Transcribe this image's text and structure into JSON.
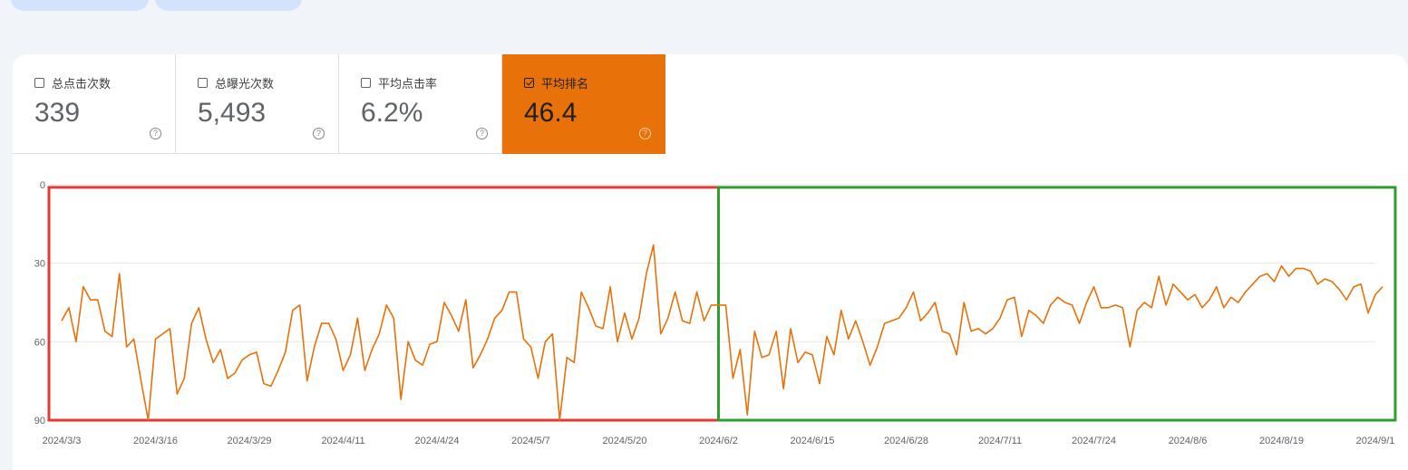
{
  "metrics": [
    {
      "label": "总点击次数",
      "value": "339",
      "checked": false
    },
    {
      "label": "总曝光次数",
      "value": "5,493",
      "checked": false
    },
    {
      "label": "平均点击率",
      "value": "6.2%",
      "checked": false
    },
    {
      "label": "平均排名",
      "value": "46.4",
      "checked": true
    }
  ],
  "icons": {
    "help": "help-circle-icon",
    "checkbox": "checkbox-icon"
  },
  "colors": {
    "accent": "#e8710a",
    "line": "#e8710a",
    "box_left": "#e53935",
    "box_right": "#2e9e2e"
  },
  "chart_data": {
    "type": "line",
    "title": "",
    "xlabel": "",
    "ylabel": "",
    "y_inverted": true,
    "ylim": [
      0,
      90
    ],
    "yticks": [
      0,
      30,
      60,
      90
    ],
    "xlim": [
      "2024-03-03",
      "2024-09-01"
    ],
    "x_tick_labels": [
      "2024/3/3",
      "2024/3/16",
      "2024/3/29",
      "2024/4/11",
      "2024/4/24",
      "2024/5/7",
      "2024/5/20",
      "2024/6/2",
      "2024/6/15",
      "2024/6/28",
      "2024/7/11",
      "2024/7/24",
      "2024/8/6",
      "2024/8/19",
      "2024/9/1"
    ],
    "x_ticks": [
      "2024-03-03",
      "2024-03-16",
      "2024-03-29",
      "2024-04-11",
      "2024-04-24",
      "2024-05-07",
      "2024-05-20",
      "2024-06-02",
      "2024-06-15",
      "2024-06-28",
      "2024-07-11",
      "2024-07-24",
      "2024-08-06",
      "2024-08-19",
      "2024-09-01"
    ],
    "grid": true,
    "series": [
      {
        "x": [
          "2024-03-03",
          "2024-03-04",
          "2024-03-05",
          "2024-03-06",
          "2024-03-07",
          "2024-03-08",
          "2024-03-09",
          "2024-03-10",
          "2024-03-11",
          "2024-03-12",
          "2024-03-13",
          "2024-03-14",
          "2024-03-15",
          "2024-03-16",
          "2024-03-17",
          "2024-03-18",
          "2024-03-19",
          "2024-03-20",
          "2024-03-21",
          "2024-03-22",
          "2024-03-23",
          "2024-03-24",
          "2024-03-25",
          "2024-03-26",
          "2024-03-27",
          "2024-03-28",
          "2024-03-29",
          "2024-03-30",
          "2024-03-31",
          "2024-04-01",
          "2024-04-02",
          "2024-04-03",
          "2024-04-04",
          "2024-04-05",
          "2024-04-06",
          "2024-04-07",
          "2024-04-08",
          "2024-04-09",
          "2024-04-10",
          "2024-04-11",
          "2024-04-12",
          "2024-04-13",
          "2024-04-14",
          "2024-04-15",
          "2024-04-16",
          "2024-04-17",
          "2024-04-18",
          "2024-04-19",
          "2024-04-20",
          "2024-04-21",
          "2024-04-22",
          "2024-04-23",
          "2024-04-24",
          "2024-04-25",
          "2024-04-26",
          "2024-04-27",
          "2024-04-28",
          "2024-04-29",
          "2024-04-30",
          "2024-05-01",
          "2024-05-02",
          "2024-05-03",
          "2024-05-04",
          "2024-05-05",
          "2024-05-06",
          "2024-05-07",
          "2024-05-08",
          "2024-05-09",
          "2024-05-10",
          "2024-05-11",
          "2024-05-12",
          "2024-05-13",
          "2024-05-14",
          "2024-05-15",
          "2024-05-16",
          "2024-05-17",
          "2024-05-18",
          "2024-05-19",
          "2024-05-20",
          "2024-05-21",
          "2024-05-22",
          "2024-05-23",
          "2024-05-24",
          "2024-05-25",
          "2024-05-26",
          "2024-05-27",
          "2024-05-28",
          "2024-05-29",
          "2024-05-30",
          "2024-05-31",
          "2024-06-01",
          "2024-06-02",
          "2024-06-03",
          "2024-06-04",
          "2024-06-05",
          "2024-06-06",
          "2024-06-07",
          "2024-06-08",
          "2024-06-09",
          "2024-06-10",
          "2024-06-11",
          "2024-06-12",
          "2024-06-13",
          "2024-06-14",
          "2024-06-15",
          "2024-06-16",
          "2024-06-17",
          "2024-06-18",
          "2024-06-19",
          "2024-06-20",
          "2024-06-21",
          "2024-06-22",
          "2024-06-23",
          "2024-06-24",
          "2024-06-25",
          "2024-06-26",
          "2024-06-27",
          "2024-06-28",
          "2024-06-29",
          "2024-06-30",
          "2024-07-01",
          "2024-07-02",
          "2024-07-03",
          "2024-07-04",
          "2024-07-05",
          "2024-07-06",
          "2024-07-07",
          "2024-07-08",
          "2024-07-09",
          "2024-07-10",
          "2024-07-11",
          "2024-07-12",
          "2024-07-13",
          "2024-07-14",
          "2024-07-15",
          "2024-07-16",
          "2024-07-17",
          "2024-07-18",
          "2024-07-19",
          "2024-07-20",
          "2024-07-21",
          "2024-07-22",
          "2024-07-23",
          "2024-07-24",
          "2024-07-25",
          "2024-07-26",
          "2024-07-27",
          "2024-07-28",
          "2024-07-29",
          "2024-07-30",
          "2024-07-31",
          "2024-08-01",
          "2024-08-02",
          "2024-08-03",
          "2024-08-04",
          "2024-08-05",
          "2024-08-06",
          "2024-08-07",
          "2024-08-08",
          "2024-08-09",
          "2024-08-10",
          "2024-08-11",
          "2024-08-12",
          "2024-08-13",
          "2024-08-14",
          "2024-08-15",
          "2024-08-16",
          "2024-08-17",
          "2024-08-18",
          "2024-08-19",
          "2024-08-20",
          "2024-08-21",
          "2024-08-22",
          "2024-08-23",
          "2024-08-24",
          "2024-08-25",
          "2024-08-26",
          "2024-08-27",
          "2024-08-28",
          "2024-08-29",
          "2024-08-30",
          "2024-08-31",
          "2024-09-01",
          "2024-09-02"
        ],
        "values": [
          52,
          47,
          60,
          39,
          44,
          44,
          56,
          58,
          34,
          62,
          59,
          75,
          90,
          59,
          57,
          55,
          80,
          74,
          53,
          47,
          59,
          68,
          63,
          74,
          72,
          67,
          65,
          64,
          76,
          77,
          71,
          64,
          48,
          46,
          75,
          62,
          53,
          53,
          59,
          71,
          65,
          51,
          71,
          63,
          57,
          46,
          51,
          82,
          60,
          67,
          69,
          61,
          60,
          45,
          50,
          56,
          44,
          70,
          65,
          59,
          51,
          48,
          41,
          41,
          59,
          62,
          74,
          60,
          57,
          90,
          66,
          68,
          41,
          47,
          54,
          55,
          39,
          60,
          49,
          59,
          51,
          34,
          23,
          57,
          51,
          41,
          52,
          53,
          41,
          52,
          46,
          46,
          46,
          74,
          63,
          88,
          56,
          66,
          65,
          56,
          78,
          55,
          68,
          64,
          65,
          76,
          58,
          65,
          48,
          59,
          52,
          60,
          69,
          62,
          53,
          52,
          51,
          47,
          41,
          52,
          49,
          45,
          56,
          57,
          65,
          45,
          56,
          55,
          57,
          55,
          51,
          44,
          43,
          58,
          48,
          50,
          53,
          46,
          43,
          45,
          46,
          53,
          45,
          39,
          47,
          47,
          46,
          47,
          62,
          48,
          45,
          47,
          35,
          46,
          38,
          41,
          44,
          42,
          47,
          44,
          39,
          47,
          43,
          45,
          41,
          38,
          35,
          34,
          37,
          31,
          35,
          32,
          32,
          33,
          38,
          36,
          37,
          40,
          44,
          39,
          38,
          49,
          42,
          39
        ]
      }
    ],
    "annotations": [
      {
        "type": "box",
        "color": "red",
        "x_start": "2024-03-03",
        "x_end": "2024-06-02",
        "y_start": 1,
        "y_end": 90
      },
      {
        "type": "box",
        "color": "green",
        "x_start": "2024-06-02",
        "x_end": "2024-09-02",
        "y_start": 1,
        "y_end": 90
      }
    ]
  }
}
